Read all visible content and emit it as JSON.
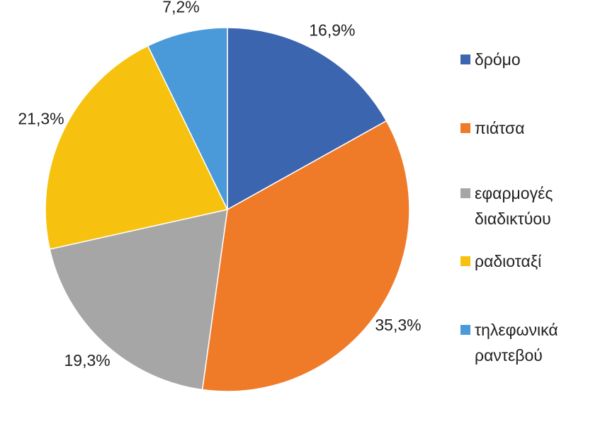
{
  "chart_data": {
    "type": "pie",
    "categories": [
      "δρόμο",
      "πιάτσα",
      "εφαρμογές διαδικτύου",
      "ραδιοταξί",
      "τηλεφωνικά ραντεβού"
    ],
    "values": [
      16.9,
      35.3,
      19.3,
      21.3,
      7.2
    ],
    "value_labels": [
      "16,9%",
      "35,3%",
      "19,3%",
      "21,3%",
      "7,2%"
    ],
    "colors": [
      "#3c65b0",
      "#ef7a28",
      "#a6a6a6",
      "#f6c20f",
      "#4a9ad9"
    ],
    "legend": "right"
  }
}
